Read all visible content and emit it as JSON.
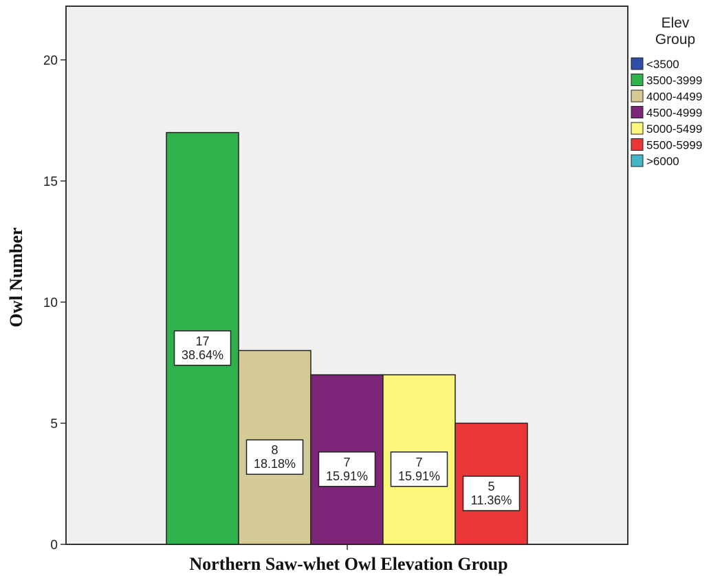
{
  "chart_data": {
    "type": "bar",
    "xlabel": "Northern Saw-whet Owl Elevation Group",
    "ylabel": "Owl Number",
    "ylim": [
      0,
      22
    ],
    "yticks": [
      0,
      5,
      10,
      15,
      20
    ],
    "grid": false,
    "legend_position": "right",
    "legend_title": [
      "Elev",
      "Group"
    ],
    "categories": [
      "<3500",
      "3500-3999",
      "4000-4499",
      "4500-4999",
      "5000-5499",
      "5500-5999",
      ">6000"
    ],
    "colors": [
      "#2e4fa8",
      "#2fb24b",
      "#d4cb96",
      "#7c2579",
      "#fbf77a",
      "#ec3538",
      "#44b5c3"
    ],
    "values": [
      0,
      17,
      8,
      7,
      7,
      5,
      0
    ],
    "bar_labels": [
      {
        "count": "17",
        "pct": "38.64%"
      },
      {
        "count": "8",
        "pct": "18.18%"
      },
      {
        "count": "7",
        "pct": "15.91%"
      },
      {
        "count": "7",
        "pct": "15.91%"
      },
      {
        "count": "5",
        "pct": "11.36%"
      }
    ]
  }
}
